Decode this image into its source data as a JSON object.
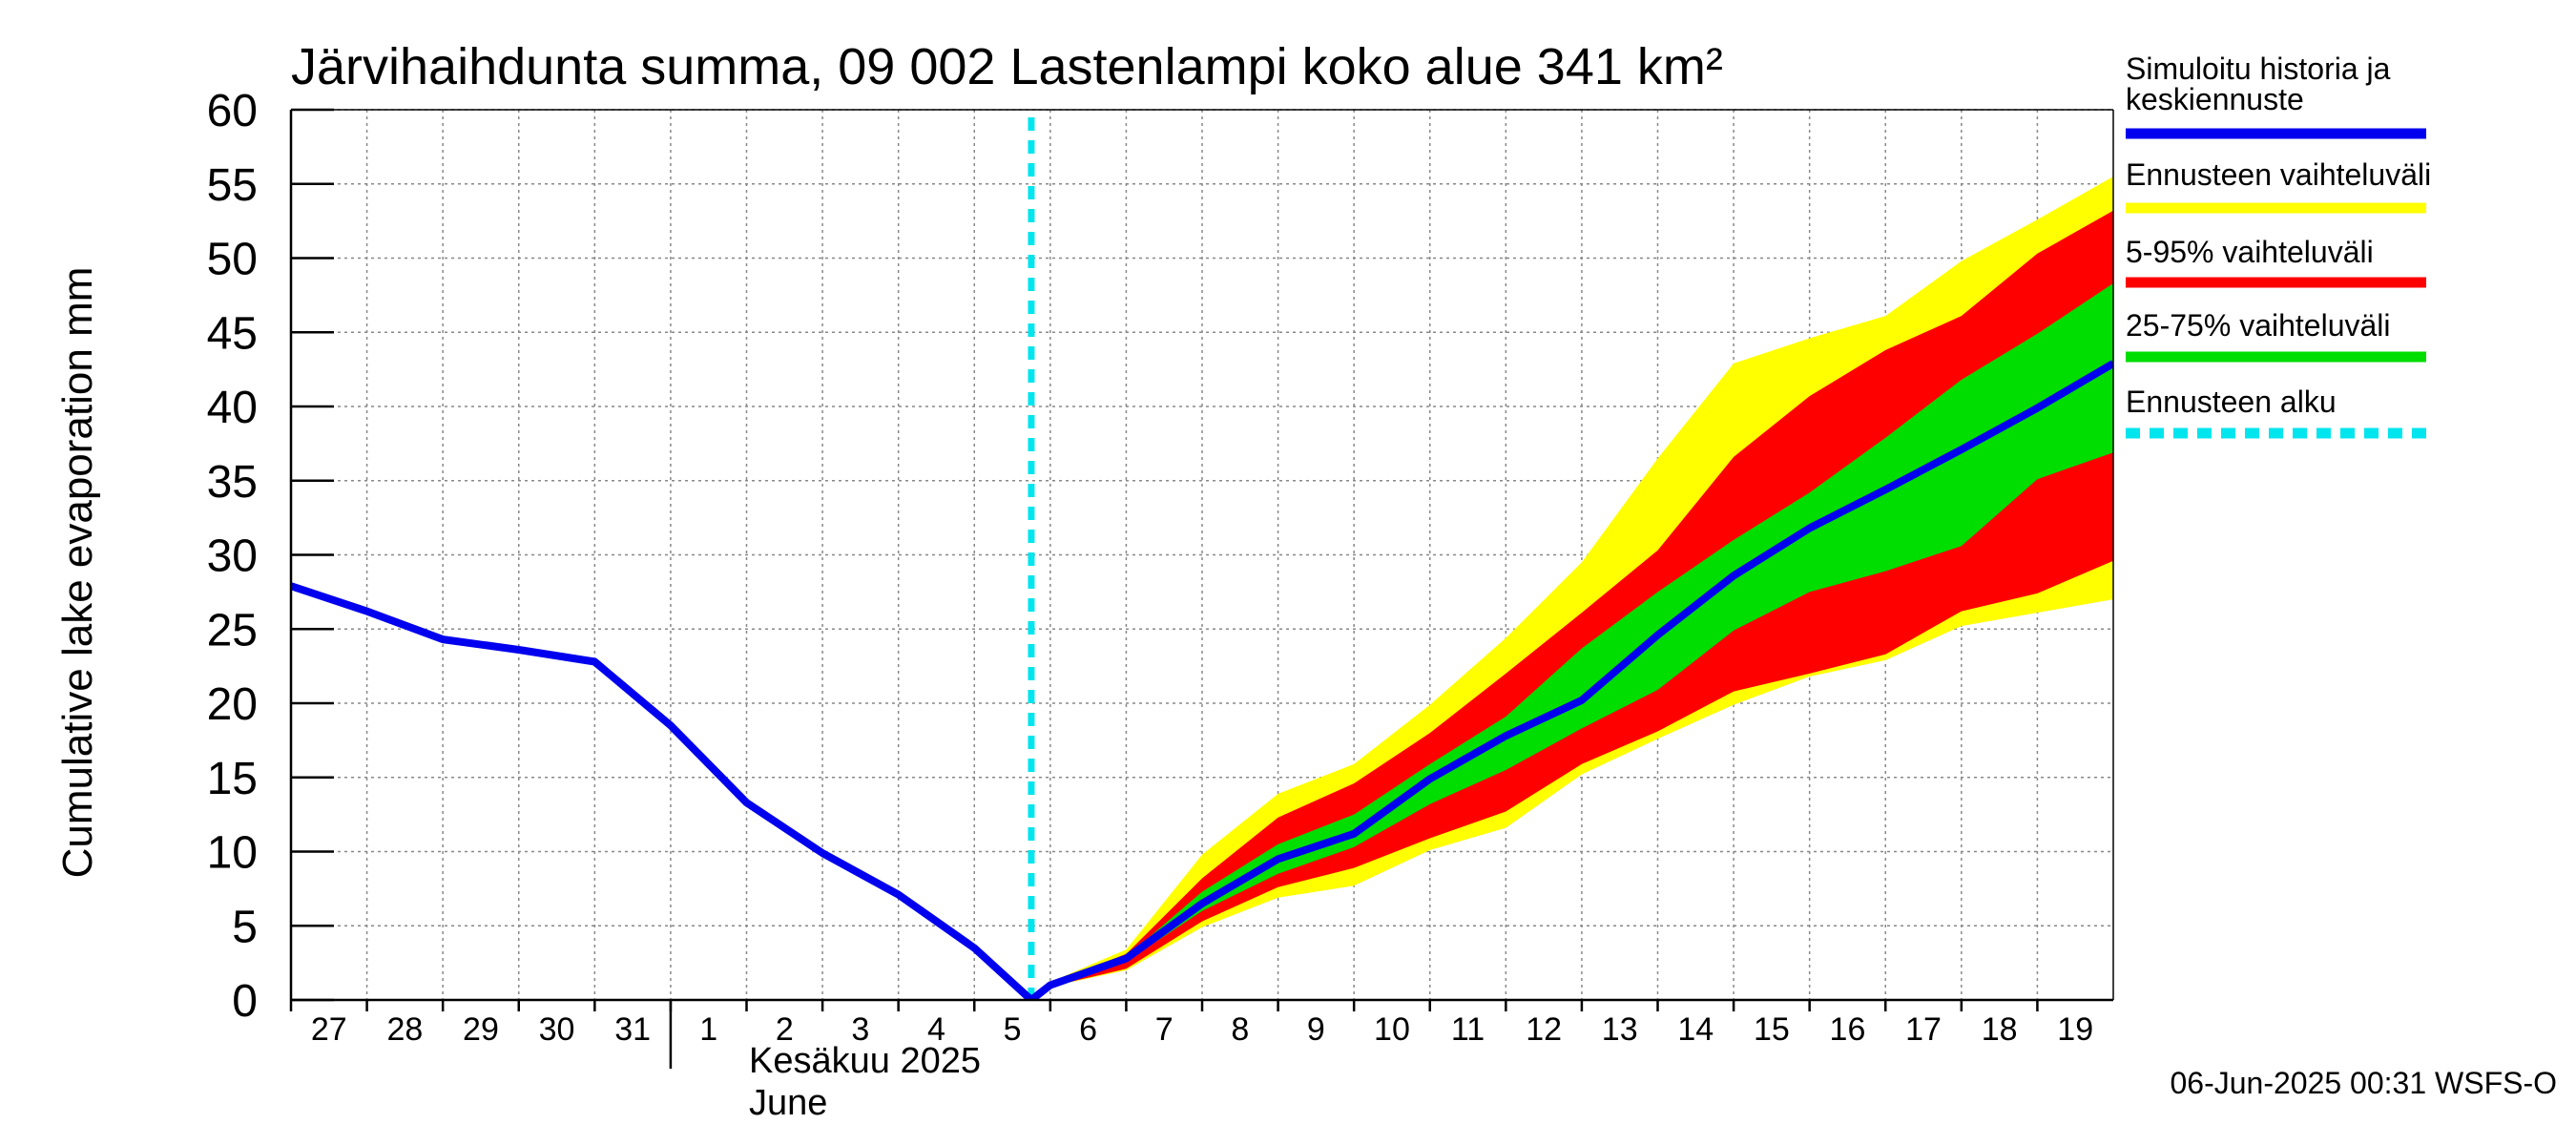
{
  "chart_data": {
    "type": "area",
    "title": "Järvihaihdunta summa, 09 002 Lastenlampi koko alue 341 km²",
    "ylabel": "Cumulative lake evaporation   mm",
    "ylim": [
      0,
      60
    ],
    "yticks": [
      0,
      5,
      10,
      15,
      20,
      25,
      30,
      35,
      40,
      45,
      50,
      55,
      60
    ],
    "xlim": [
      "2025-05-27",
      "2025-06-19"
    ],
    "x_tick_labels": [
      {
        "x": "2025-05-27",
        "label": "27"
      },
      {
        "x": "2025-05-28",
        "label": "28"
      },
      {
        "x": "2025-05-29",
        "label": "29"
      },
      {
        "x": "2025-05-30",
        "label": "30"
      },
      {
        "x": "2025-05-31",
        "label": "31"
      },
      {
        "x": "2025-06-01",
        "label": "1"
      },
      {
        "x": "2025-06-02",
        "label": "2"
      },
      {
        "x": "2025-06-03",
        "label": "3"
      },
      {
        "x": "2025-06-04",
        "label": "4"
      },
      {
        "x": "2025-06-05",
        "label": "5"
      },
      {
        "x": "2025-06-06",
        "label": "6"
      },
      {
        "x": "2025-06-07",
        "label": "7"
      },
      {
        "x": "2025-06-08",
        "label": "8"
      },
      {
        "x": "2025-06-09",
        "label": "9"
      },
      {
        "x": "2025-06-10",
        "label": "10"
      },
      {
        "x": "2025-06-11",
        "label": "11"
      },
      {
        "x": "2025-06-12",
        "label": "12"
      },
      {
        "x": "2025-06-13",
        "label": "13"
      },
      {
        "x": "2025-06-14",
        "label": "14"
      },
      {
        "x": "2025-06-15",
        "label": "15"
      },
      {
        "x": "2025-06-16",
        "label": "16"
      },
      {
        "x": "2025-06-17",
        "label": "17"
      },
      {
        "x": "2025-06-18",
        "label": "18"
      },
      {
        "x": "2025-06-19",
        "label": "19"
      }
    ],
    "month_label_fi": "Kesäkuu  2025",
    "month_label_en": "June",
    "grid": true,
    "legend_position": "right",
    "forecast_start": "2025-06-05T18:00",
    "series": [
      {
        "name": "Simuloitu historia ja keskiennuste",
        "color": "#0000ee",
        "x": [
          "2025-05-27",
          "2025-05-28",
          "2025-05-29",
          "2025-05-30",
          "2025-05-31",
          "2025-06-01",
          "2025-06-02",
          "2025-06-03",
          "2025-06-04",
          "2025-06-05",
          "2025-06-05T18:00",
          "2025-06-06",
          "2025-06-07",
          "2025-06-08",
          "2025-06-09",
          "2025-06-10",
          "2025-06-11",
          "2025-06-12",
          "2025-06-13",
          "2025-06-14",
          "2025-06-15",
          "2025-06-16",
          "2025-06-17",
          "2025-06-18",
          "2025-06-19",
          "2025-06-20"
        ],
        "y": [
          27.9,
          26.2,
          24.3,
          23.6,
          22.8,
          18.5,
          13.3,
          9.9,
          7.1,
          3.5,
          0,
          1.0,
          2.8,
          6.5,
          9.5,
          11.2,
          14.9,
          17.8,
          20.2,
          24.6,
          28.6,
          31.8,
          34.4,
          37.1,
          39.9,
          42.9
        ]
      },
      {
        "name": "Ennusteen vaihteluväli",
        "color": "#ffff00",
        "x": [
          "2025-06-05T18:00",
          "2025-06-06",
          "2025-06-07",
          "2025-06-08",
          "2025-06-09",
          "2025-06-10",
          "2025-06-11",
          "2025-06-12",
          "2025-06-13",
          "2025-06-14",
          "2025-06-15",
          "2025-06-16",
          "2025-06-17",
          "2025-06-18",
          "2025-06-19",
          "2025-06-20"
        ],
        "upper": [
          0,
          1.2,
          3.4,
          9.8,
          13.9,
          15.9,
          19.9,
          24.4,
          29.5,
          36.5,
          42.9,
          44.6,
          46.1,
          49.8,
          52.6,
          55.5
        ],
        "lower": [
          0,
          0.9,
          2.0,
          4.9,
          6.9,
          7.7,
          10.1,
          11.6,
          15.2,
          17.6,
          19.9,
          21.8,
          22.9,
          25.2,
          26.1,
          27.0
        ]
      },
      {
        "name": "5-95% vaihteluväli",
        "color": "#ff0000",
        "x": [
          "2025-06-05T18:00",
          "2025-06-06",
          "2025-06-07",
          "2025-06-08",
          "2025-06-09",
          "2025-06-10",
          "2025-06-11",
          "2025-06-12",
          "2025-06-13",
          "2025-06-14",
          "2025-06-15",
          "2025-06-16",
          "2025-06-17",
          "2025-06-18",
          "2025-06-19",
          "2025-06-20"
        ],
        "upper": [
          0,
          1.1,
          3.1,
          8.2,
          12.3,
          14.6,
          18.0,
          22.0,
          26.1,
          30.3,
          36.6,
          40.7,
          43.8,
          46.1,
          50.3,
          53.2
        ],
        "lower": [
          0,
          0.9,
          2.1,
          5.3,
          7.6,
          8.9,
          10.9,
          12.7,
          15.9,
          18.1,
          20.8,
          22.0,
          23.3,
          26.2,
          27.4,
          29.6
        ]
      },
      {
        "name": "25-75% vaihteluväli",
        "color": "#00dd00",
        "x": [
          "2025-06-05T18:00",
          "2025-06-06",
          "2025-06-07",
          "2025-06-08",
          "2025-06-09",
          "2025-06-10",
          "2025-06-11",
          "2025-06-12",
          "2025-06-13",
          "2025-06-14",
          "2025-06-15",
          "2025-06-16",
          "2025-06-17",
          "2025-06-18",
          "2025-06-19",
          "2025-06-20"
        ],
        "upper": [
          0,
          1.0,
          2.9,
          7.3,
          10.5,
          12.5,
          15.9,
          19.1,
          23.7,
          27.5,
          31.0,
          34.2,
          37.9,
          41.8,
          44.9,
          48.3
        ],
        "lower": [
          0,
          0.95,
          2.6,
          6.0,
          8.5,
          10.3,
          13.2,
          15.5,
          18.3,
          20.9,
          24.9,
          27.5,
          28.9,
          30.6,
          35.1,
          36.9
        ]
      },
      {
        "name": "Ennusteen alku",
        "color": "#00e5ee",
        "style": "dashed"
      }
    ]
  },
  "legend": {
    "items": [
      {
        "text": "Simuloitu historia ja",
        "text2": "keskiennuste",
        "color": "#0000ee"
      },
      {
        "text": "Ennusteen vaihteluväli",
        "color": "#ffff00"
      },
      {
        "text": "5-95% vaihteluväli",
        "color": "#ff0000"
      },
      {
        "text": "25-75% vaihteluväli",
        "color": "#00dd00"
      },
      {
        "text": "Ennusteen alku",
        "color": "#00e5ee"
      }
    ]
  },
  "footer": "06-Jun-2025 00:31 WSFS-O"
}
